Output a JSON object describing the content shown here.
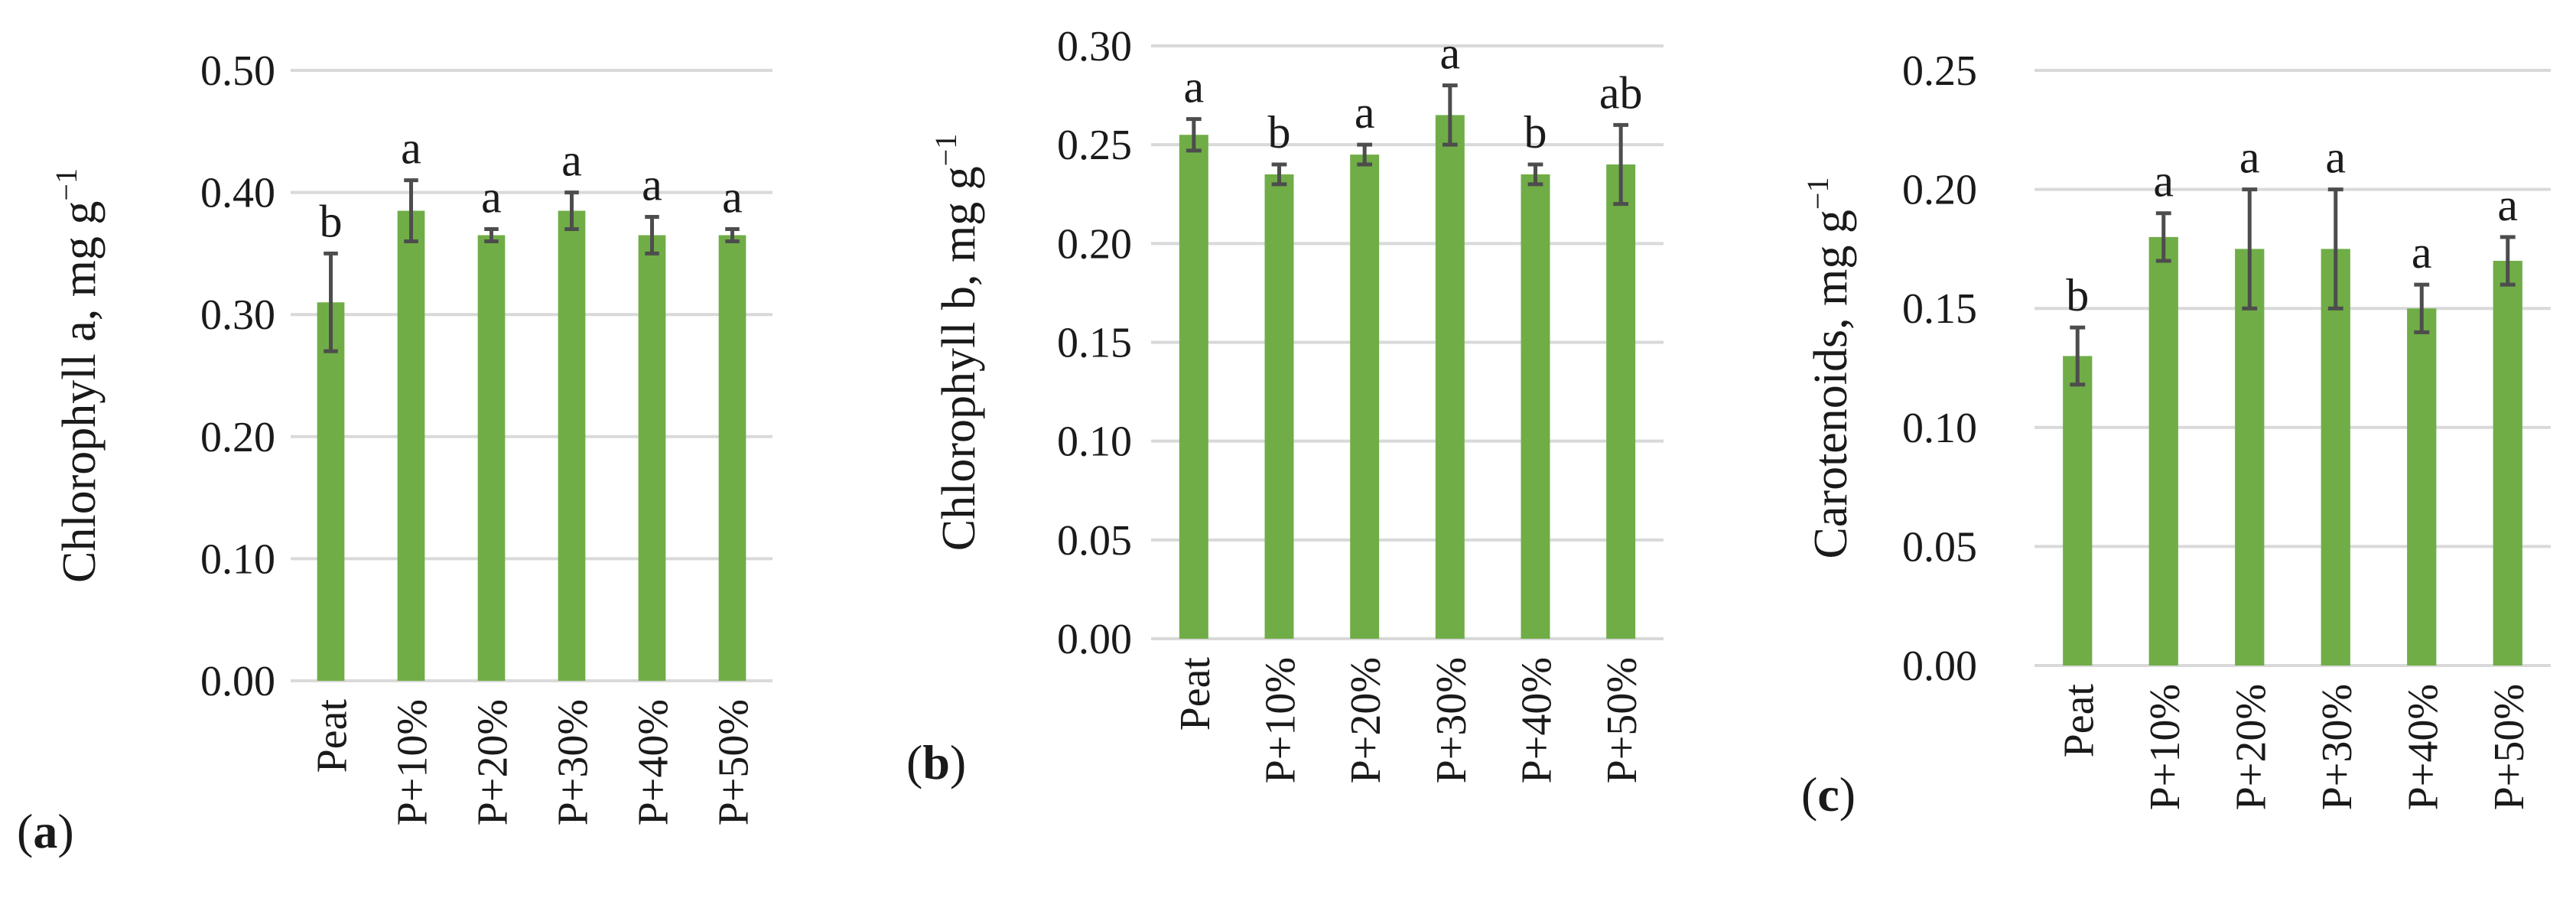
{
  "colors": {
    "bar": "#70ad47",
    "grid": "#d9d9d9",
    "error_bar": "#4d4d4d"
  },
  "chart_data": [
    {
      "type": "bar",
      "panel_label": "a",
      "ylabel": "Chlorophyll a, mg g",
      "ylabel_sup": "−1",
      "ylim": [
        0,
        0.5
      ],
      "y_ticks": [
        "0.00",
        "0.10",
        "0.20",
        "0.30",
        "0.40",
        "0.50"
      ],
      "grid": true,
      "categories": [
        "Peat",
        "P+10%",
        "P+20%",
        "P+30%",
        "P+40%",
        "P+50%"
      ],
      "values": [
        0.31,
        0.385,
        0.365,
        0.385,
        0.365,
        0.365
      ],
      "errors": [
        0.04,
        0.025,
        0.005,
        0.015,
        0.015,
        0.005
      ],
      "significance": [
        "b",
        "a",
        "a",
        "a",
        "a",
        "a"
      ]
    },
    {
      "type": "bar",
      "panel_label": "b",
      "ylabel": "Chlorophyll b, mg g",
      "ylabel_sup": "−1",
      "ylim": [
        0,
        0.3
      ],
      "y_ticks": [
        "0.00",
        "0.05",
        "0.10",
        "0.15",
        "0.20",
        "0.25",
        "0.30"
      ],
      "grid": true,
      "categories": [
        "Peat",
        "P+10%",
        "P+20%",
        "P+30%",
        "P+40%",
        "P+50%"
      ],
      "values": [
        0.255,
        0.235,
        0.245,
        0.265,
        0.235,
        0.24
      ],
      "errors": [
        0.008,
        0.005,
        0.005,
        0.015,
        0.005,
        0.02
      ],
      "significance": [
        "a",
        "b",
        "a",
        "a",
        "b",
        "ab"
      ]
    },
    {
      "type": "bar",
      "panel_label": "c",
      "ylabel": "Carotenoids, mg g",
      "ylabel_sup": "−1",
      "ylim": [
        0,
        0.25
      ],
      "y_ticks": [
        "0.00",
        "0.05",
        "0.10",
        "0.15",
        "0.20",
        "0.25"
      ],
      "grid": true,
      "categories": [
        "Peat",
        "P+10%",
        "P+20%",
        "P+30%",
        "P+40%",
        "P+50%"
      ],
      "values": [
        0.13,
        0.18,
        0.175,
        0.175,
        0.15,
        0.17
      ],
      "errors": [
        0.012,
        0.01,
        0.025,
        0.025,
        0.01,
        0.01
      ],
      "significance": [
        "b",
        "a",
        "a",
        "a",
        "a",
        "a"
      ]
    }
  ]
}
